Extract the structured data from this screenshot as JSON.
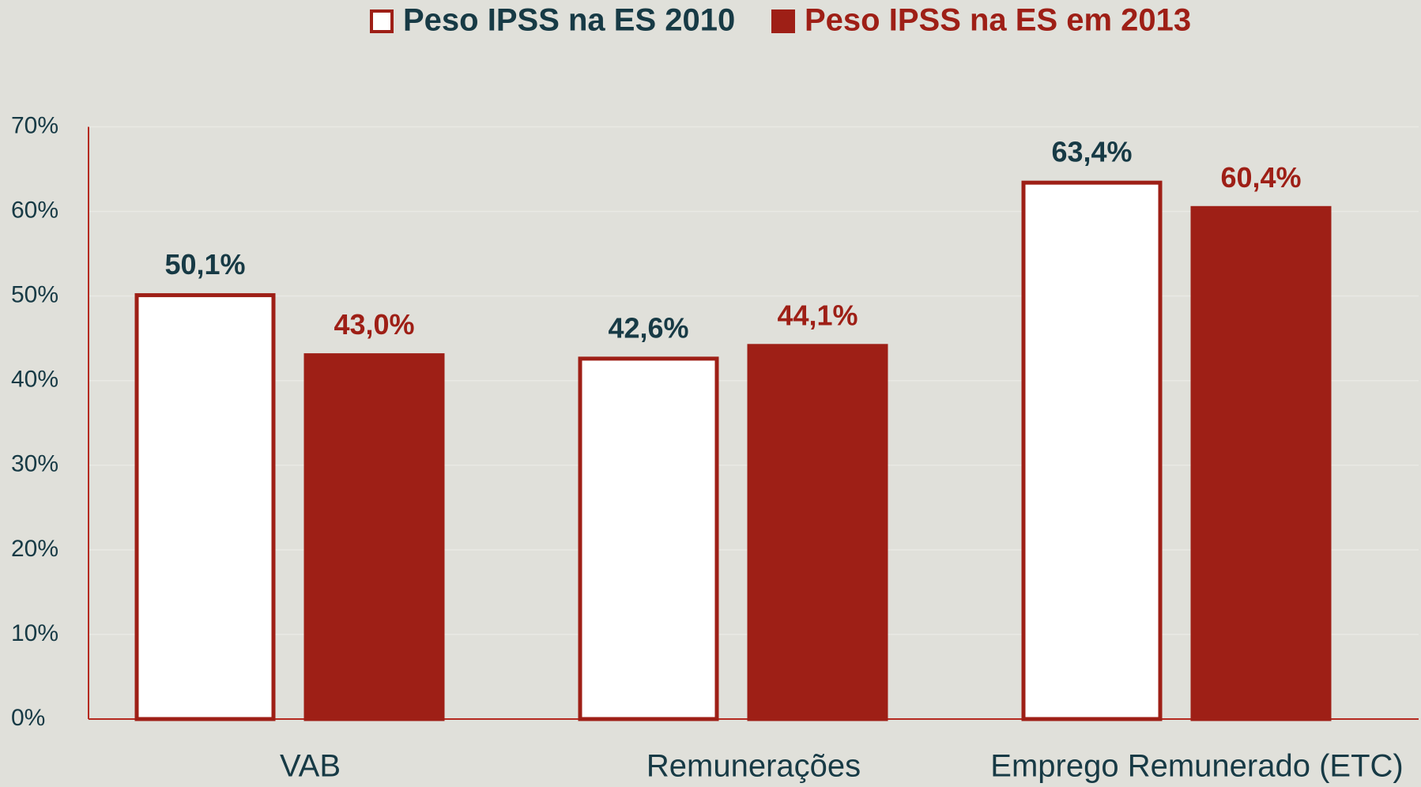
{
  "chart_data": {
    "type": "bar",
    "categories": [
      "VAB",
      "Remunerações",
      "Emprego Remunerado (ETC)"
    ],
    "series": [
      {
        "name": "Peso IPSS na ES 2010",
        "color": "#ffffff",
        "edgecolor": "#9e1f16",
        "label_color": "#173a45",
        "values": [
          50.1,
          42.6,
          63.4
        ],
        "value_labels": [
          "50,1%",
          "42,6%",
          "63,4%"
        ]
      },
      {
        "name": "Peso IPSS na ES em 2013",
        "color": "#9e1f16",
        "edgecolor": "#9e1f16",
        "label_color": "#9e1f16",
        "values": [
          43.0,
          44.1,
          60.4
        ],
        "value_labels": [
          "43,0%",
          "44,1%",
          "60,4%"
        ]
      }
    ],
    "ylim": [
      0,
      70
    ],
    "yticks": [
      {
        "value": 0,
        "label": "0%"
      },
      {
        "value": 10,
        "label": "10%"
      },
      {
        "value": 20,
        "label": "20%"
      },
      {
        "value": 30,
        "label": "30%"
      },
      {
        "value": 40,
        "label": "40%"
      },
      {
        "value": 50,
        "label": "50%"
      },
      {
        "value": 60,
        "label": "60%"
      },
      {
        "value": 70,
        "label": "70%"
      }
    ],
    "grid": true,
    "legend": "top"
  }
}
